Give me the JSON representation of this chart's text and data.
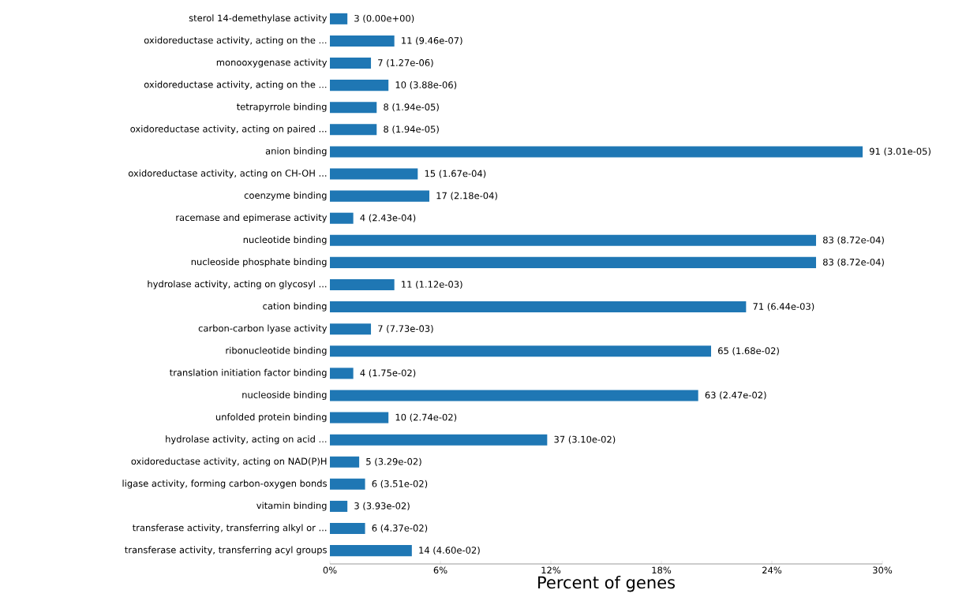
{
  "chart_data": {
    "type": "bar",
    "orientation": "horizontal",
    "xlabel": "Percent of genes",
    "color": "#1f77b4",
    "categories": [
      "sterol 14-demethylase activity",
      "oxidoreductase activity, acting on the ...",
      "monooxygenase activity",
      "oxidoreductase activity, acting on the ...",
      "tetrapyrrole binding",
      "oxidoreductase activity, acting on paired ...",
      "anion binding",
      "oxidoreductase activity, acting on CH-OH ...",
      "coenzyme binding",
      "racemase and epimerase activity",
      "nucleotide binding",
      "nucleoside phosphate binding",
      "hydrolase activity, acting on glycosyl ...",
      "cation binding",
      "carbon-carbon lyase activity",
      "ribonucleotide binding",
      "translation initiation factor binding",
      "nucleoside binding",
      "unfolded protein binding",
      "hydrolase activity, acting on acid ...",
      "oxidoreductase activity, acting on NAD(P)H",
      "ligase activity, forming carbon-oxygen bonds",
      "vitamin binding",
      "transferase activity, transferring alkyl or ...",
      "transferase activity, transferring acyl groups"
    ],
    "values": [
      0.95,
      3.5,
      2.23,
      3.18,
      2.54,
      2.54,
      28.93,
      4.77,
      5.4,
      1.27,
      26.4,
      26.4,
      3.5,
      22.6,
      2.23,
      20.7,
      1.27,
      20.0,
      3.18,
      11.8,
      1.59,
      1.91,
      0.95,
      1.91,
      4.45
    ],
    "annotations": [
      {
        "text": "3 (0.00e+00)",
        "x": 0.95,
        "y": "sterol 14-demethylase activity"
      },
      {
        "text": "11 (9.46e-07)",
        "x": 3.5,
        "y": "oxidoreductase activity, acting on the ..."
      },
      {
        "text": "7 (1.27e-06)",
        "x": 2.23,
        "y": "monooxygenase activity"
      },
      "10 (3.88e-06)",
      {
        "text": "8 (1.94e-05)",
        "x": 2.54,
        "y": "tetrapyrrole binding"
      },
      {
        "text": "8 (1.94e-05)",
        "x": 2.54,
        "y": "oxidoreductase activity, acting on paired ..."
      },
      {
        "text": "91 (3.01e-05)",
        "x": 28.93,
        "y": "anion binding"
      },
      {
        "text": "15 (1.67e-04)",
        "x": 4.77,
        "y": "oxidoreductase activity, acting on CH-OH ..."
      },
      {
        "text": "17 (2.18e-04)",
        "x": 5.4,
        "y": "coenzyme binding"
      },
      {
        "text": "4 (2.43e-04)",
        "x": 1.27,
        "y": "racemase and epimerase activity"
      },
      {
        "text": "83 (8.72e-04)",
        "x": 26.4,
        "y": "nucleotide binding"
      },
      {
        "text": "83 (8.72e-04)",
        "x": 26.4,
        "y": "nucleoside phosphate binding"
      },
      {
        "text": "11 (1.12e-03)",
        "x": 3.5,
        "y": "hydrolase activity, acting on glycosyl ..."
      },
      {
        "text": "71 (6.44e-03)",
        "x": 22.6,
        "y": "cation binding"
      },
      {
        "text": "7 (7.73e-03)",
        "x": 2.23,
        "y": "carbon-carbon lyase activity"
      },
      {
        "text": "65 (1.68e-02)",
        "x": 20.7,
        "y": "ribonucleotide binding"
      },
      {
        "text": "4 (1.75e-02)",
        "x": 1.27,
        "y": "translation initiation factor binding"
      },
      {
        "text": "63 (2.47e-02)",
        "x": 20.0,
        "y": "nucleoside binding"
      },
      {
        "text": "10 (2.74e-02)",
        "x": 3.18,
        "y": "unfolded protein binding"
      },
      {
        "text": "37 (3.10e-02)",
        "x": 11.8,
        "y": "hydrolase activity, acting on acid ..."
      },
      {
        "text": "5 (3.29e-02)",
        "x": 1.59,
        "y": "oxidoreductase activity, acting on NAD(P)H"
      },
      {
        "text": "6 (3.51e-02)",
        "x": 1.91,
        "y": "ligase activity, forming carbon-oxygen bonds"
      },
      {
        "text": "3 (3.93e-02)",
        "x": 0.95,
        "y": "vitamin binding"
      },
      {
        "text": "6 (4.37e-02)",
        "x": 1.91,
        "y": "transferase activity, transferring alkyl or ..."
      },
      {
        "text": "14 (4.60e-02)",
        "x": 4.45,
        "y": "transferase activity, transferring acyl groups"
      }
    ],
    "xlim": [
      0,
      30
    ],
    "xticks": [
      {
        "value": 0,
        "label": "0%"
      },
      {
        "value": 6,
        "label": "6%"
      },
      {
        "value": 12,
        "label": "12%"
      },
      {
        "value": 18,
        "label": "18%"
      },
      {
        "value": 24,
        "label": "24%"
      },
      {
        "value": 30,
        "label": "30%"
      }
    ]
  }
}
